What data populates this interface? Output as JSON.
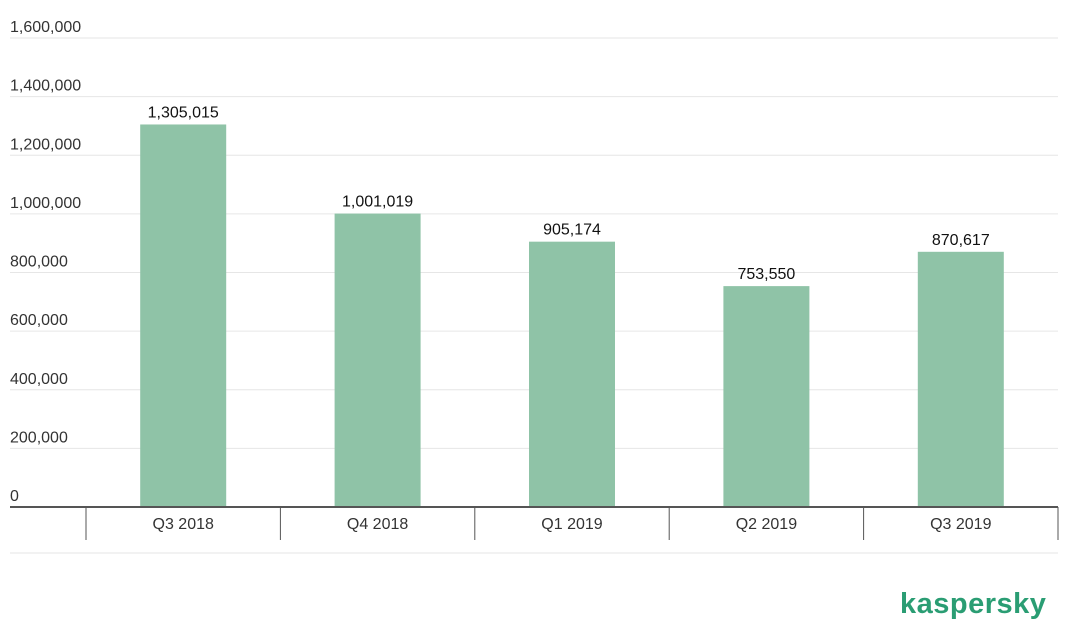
{
  "chart_data": {
    "type": "bar",
    "categories": [
      "Q3 2018",
      "Q4 2018",
      "Q1 2019",
      "Q2 2019",
      "Q3 2019"
    ],
    "values": [
      1305015,
      1001019,
      905174,
      753550,
      870617
    ],
    "data_labels": [
      "1,305,015",
      "1,001,019",
      "905,174",
      "753,550",
      "870,617"
    ],
    "yticks": [
      0,
      200000,
      400000,
      600000,
      800000,
      1000000,
      1200000,
      1400000,
      1600000
    ],
    "ytick_labels": [
      "0",
      "200,000",
      "400,000",
      "600,000",
      "800,000",
      "1,000,000",
      "1,200,000",
      "1,400,000",
      "1,600,000"
    ],
    "ylim": [
      0,
      1600000
    ],
    "grid": true,
    "legend": "none",
    "bar_color": "#8fc3a7",
    "axis_color": "#555555",
    "grid_color": "#e6e6e6"
  },
  "brand": {
    "logo_text": "kaspersky",
    "logo_color": "#2a9d73"
  }
}
